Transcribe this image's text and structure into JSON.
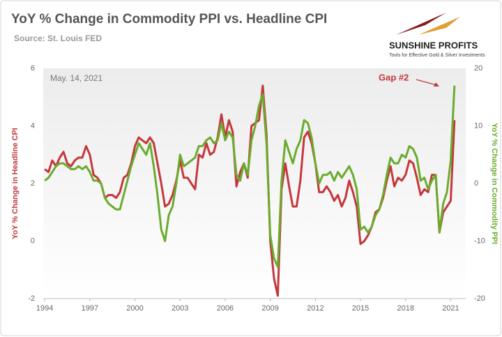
{
  "chart_data": {
    "type": "line",
    "title": "YoY % Change in Commodity PPI vs. Headline CPI",
    "subtitle": "Source: St. Louis FED",
    "annotations": [
      "May. 14, 2021",
      "Gap #2"
    ],
    "ylabel": "YoY % Change in Headline CPI",
    "y2label": "YoY % Change in Commodity PPI",
    "xlim": [
      1993.9,
      2022.0
    ],
    "xticks": [
      1994,
      1997,
      2000,
      2003,
      2006,
      2009,
      2012,
      2015,
      2018,
      2021
    ],
    "ylim": [
      -2,
      6
    ],
    "yticks": [
      -2,
      0,
      2,
      4,
      6
    ],
    "y2lim": [
      -20,
      20
    ],
    "y2ticks": [
      -20,
      -10,
      0,
      10,
      20
    ],
    "grid": false,
    "x": [
      1994.0,
      1994.25,
      1994.5,
      1994.75,
      1995.0,
      1995.25,
      1995.5,
      1995.75,
      1996.0,
      1996.25,
      1996.5,
      1996.75,
      1997.0,
      1997.25,
      1997.5,
      1997.75,
      1998.0,
      1998.25,
      1998.5,
      1998.75,
      1999.0,
      1999.25,
      1999.5,
      1999.75,
      2000.0,
      2000.25,
      2000.5,
      2000.75,
      2001.0,
      2001.25,
      2001.5,
      2001.75,
      2002.0,
      2002.25,
      2002.5,
      2002.75,
      2003.0,
      2003.25,
      2003.5,
      2003.75,
      2004.0,
      2004.25,
      2004.5,
      2004.75,
      2005.0,
      2005.25,
      2005.5,
      2005.75,
      2006.0,
      2006.25,
      2006.5,
      2006.75,
      2007.0,
      2007.25,
      2007.5,
      2007.75,
      2008.0,
      2008.25,
      2008.5,
      2008.75,
      2009.0,
      2009.25,
      2009.5,
      2009.75,
      2010.0,
      2010.25,
      2010.5,
      2010.75,
      2011.0,
      2011.25,
      2011.5,
      2011.75,
      2012.0,
      2012.25,
      2012.5,
      2012.75,
      2013.0,
      2013.25,
      2013.5,
      2013.75,
      2014.0,
      2014.25,
      2014.5,
      2014.75,
      2015.0,
      2015.25,
      2015.5,
      2015.75,
      2016.0,
      2016.25,
      2016.5,
      2016.75,
      2017.0,
      2017.25,
      2017.5,
      2017.75,
      2018.0,
      2018.25,
      2018.5,
      2018.75,
      2019.0,
      2019.25,
      2019.5,
      2019.75,
      2020.0,
      2020.25,
      2020.5,
      2020.75,
      2021.0,
      2021.25
    ],
    "series": [
      {
        "name": "YoY % Change in Headline CPI",
        "color": "#c3383c",
        "axis": "y",
        "values": [
          2.5,
          2.4,
          2.8,
          2.6,
          2.9,
          3.1,
          2.7,
          2.6,
          2.8,
          2.9,
          2.9,
          3.3,
          3.0,
          2.3,
          2.2,
          2.0,
          1.5,
          1.6,
          1.6,
          1.5,
          1.7,
          2.2,
          2.3,
          2.7,
          3.3,
          3.6,
          3.5,
          3.4,
          3.6,
          3.4,
          2.7,
          2.0,
          1.2,
          1.3,
          1.6,
          2.1,
          2.8,
          2.2,
          2.2,
          2.0,
          1.8,
          3.0,
          2.9,
          3.4,
          3.0,
          3.1,
          3.6,
          4.4,
          3.6,
          4.2,
          3.8,
          1.9,
          2.4,
          2.7,
          2.2,
          4.0,
          4.1,
          4.2,
          5.4,
          3.7,
          0.0,
          -1.3,
          -1.9,
          1.8,
          2.7,
          1.9,
          1.2,
          1.2,
          2.1,
          3.6,
          3.8,
          3.4,
          2.7,
          1.7,
          1.7,
          1.9,
          1.7,
          1.4,
          1.6,
          1.2,
          1.5,
          2.1,
          1.7,
          1.2,
          -0.1,
          0.0,
          0.2,
          0.5,
          1.0,
          1.1,
          1.5,
          2.1,
          2.6,
          1.9,
          2.2,
          2.1,
          2.3,
          2.8,
          2.7,
          2.2,
          1.6,
          1.8,
          1.7,
          2.3,
          2.3,
          0.3,
          1.0,
          1.2,
          1.4,
          4.2
        ]
      },
      {
        "name": "YoY % Change in Commodity PPI",
        "color": "#6aac2e",
        "axis": "y2",
        "values": [
          0.5,
          1.0,
          2.0,
          3.0,
          3.5,
          3.5,
          3.0,
          2.5,
          2.5,
          3.0,
          2.5,
          3.0,
          2.0,
          0.5,
          0.5,
          0.0,
          -2.5,
          -3.5,
          -4.0,
          -4.5,
          -4.5,
          -2.0,
          0.5,
          3.0,
          5.0,
          7.0,
          6.0,
          5.0,
          7.0,
          3.0,
          -2.0,
          -8.0,
          -10.0,
          -5.5,
          -4.0,
          0.0,
          5.0,
          3.0,
          3.5,
          4.0,
          4.5,
          6.5,
          6.5,
          7.5,
          8.0,
          7.0,
          7.5,
          10.5,
          7.5,
          9.0,
          8.0,
          1.5,
          0.5,
          3.5,
          1.5,
          7.5,
          10.0,
          13.5,
          15.5,
          7.0,
          -9.0,
          -13.0,
          -14.5,
          0.5,
          7.5,
          5.5,
          3.5,
          6.0,
          7.5,
          11.0,
          10.5,
          8.0,
          3.5,
          0.0,
          1.5,
          1.5,
          2.0,
          0.5,
          2.0,
          1.0,
          2.0,
          3.0,
          1.5,
          -1.0,
          -8.0,
          -7.5,
          -8.5,
          -7.5,
          -5.5,
          -4.5,
          -2.0,
          1.5,
          4.5,
          3.5,
          3.5,
          5.0,
          4.5,
          6.5,
          6.0,
          4.5,
          0.5,
          1.0,
          -1.0,
          0.5,
          1.5,
          -8.5,
          -3.5,
          -1.5,
          4.0,
          17.0
        ]
      }
    ]
  },
  "logo": {
    "name": "SUNSHINE PROFITS",
    "tagline": "Tools for Effective Gold & Silver Investments"
  }
}
